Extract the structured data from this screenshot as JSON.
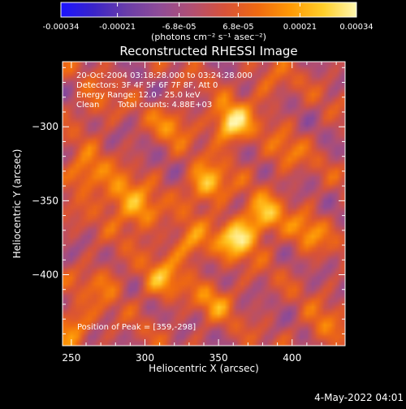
{
  "colorbar": {
    "tick_labels": [
      "-0.00034",
      "-0.00021",
      "-6.8e-05",
      "6.8e-05",
      "0.00021",
      "0.00034"
    ],
    "tick_values": [
      -0.00034,
      -0.00021,
      -6.8e-05,
      6.8e-05,
      0.00021,
      0.00034
    ],
    "range": [
      -0.00034,
      0.00034
    ],
    "unit_label": "(photons cm⁻² s⁻¹ asec⁻²)",
    "gradient": [
      "#1b14ff",
      "#3a24c8",
      "#6a3da8",
      "#8f4c97",
      "#b24f72",
      "#d85238",
      "#f06a10",
      "#ff9a05",
      "#ffcf2a",
      "#fff7b0"
    ]
  },
  "header": {
    "title": "Reconstructed RHESSI Image"
  },
  "annotations": {
    "time_range": "20-Oct-2004 03:18:28.000 to 03:24:28.000",
    "detectors": "Detectors: 3F 4F 5F 6F 7F 8F, Att 0",
    "energy": "Energy Range: 12.0 - 25.0 keV",
    "clean": "Clean",
    "counts": "Total counts: 4.88E+03",
    "peak": "Position of Peak = [359,-298]"
  },
  "axes": {
    "xlabel": "Heliocentric X (arcsec)",
    "ylabel": "Heliocentric Y (arcsec)"
  },
  "footer": {
    "timestamp": "4-May-2022 04:01"
  },
  "chart_data": {
    "type": "heatmap",
    "title": "Reconstructed RHESSI Image",
    "xlabel": "Heliocentric X (arcsec)",
    "ylabel": "Heliocentric Y (arcsec)",
    "xlim": [
      244,
      436
    ],
    "ylim": [
      -448,
      -256
    ],
    "x_ticks": [
      250,
      300,
      350,
      400
    ],
    "y_ticks": [
      -300,
      -350,
      -400
    ],
    "z_range": [
      -0.00034,
      0.00034
    ],
    "colorbar_unit": "photons cm^-2 s^-1 asec^-2",
    "peak_position": [
      359,
      -298
    ],
    "peak_value": 0.00034,
    "sources": [
      {
        "x": 359,
        "y": -298,
        "value": 0.00034
      },
      {
        "x": 363,
        "y": -375,
        "value": 0.00031
      },
      {
        "x": 342,
        "y": -339,
        "value": 0.00027
      },
      {
        "x": 381,
        "y": -360,
        "value": 0.00024
      },
      {
        "x": 260,
        "y": -332,
        "value": 0.0002
      },
      {
        "x": 297,
        "y": -358,
        "value": 0.00021
      },
      {
        "x": 330,
        "y": -380,
        "value": 0.00019
      },
      {
        "x": 311,
        "y": -404,
        "value": 0.0002
      },
      {
        "x": 282,
        "y": -346,
        "value": 0.00018
      },
      {
        "x": 252,
        "y": -434,
        "value": 0.00018
      },
      {
        "x": 411,
        "y": -372,
        "value": 0.00016
      },
      {
        "x": 318,
        "y": -298,
        "value": 0.00014
      },
      {
        "x": 347,
        "y": -418,
        "value": 0.00015
      },
      {
        "x": 272,
        "y": -405,
        "value": 0.00012
      },
      {
        "x": 395,
        "y": -318,
        "value": 0.00012
      },
      {
        "x": 421,
        "y": -436,
        "value": 0.00012
      },
      {
        "x": 265,
        "y": -286,
        "value": 0.0001
      },
      {
        "x": 383,
        "y": -272,
        "value": 0.0001
      }
    ]
  }
}
